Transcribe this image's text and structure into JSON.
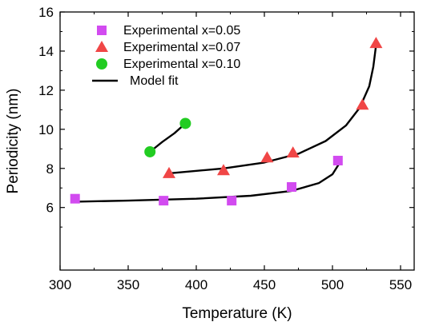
{
  "chart_data": {
    "type": "scatter",
    "xlabel": "Temperature (K)",
    "ylabel": "Periodicity (nm)",
    "xlim": [
      300,
      560
    ],
    "ylim": [
      2.8,
      16
    ],
    "xticks": [
      300,
      350,
      400,
      450,
      500,
      550
    ],
    "yticks": [
      6,
      8,
      10,
      12,
      14,
      16
    ],
    "legend_position": "top-left",
    "grid": false,
    "series": [
      {
        "name": "Experimental x=0.05",
        "marker": "square",
        "color": "#d24bf0",
        "points": [
          [
            311,
            6.45
          ],
          [
            376,
            6.35
          ],
          [
            426,
            6.35
          ],
          [
            470,
            7.05
          ],
          [
            504,
            8.4
          ]
        ]
      },
      {
        "name": "Experimental x=0.07",
        "marker": "triangle",
        "color": "#f04646",
        "points": [
          [
            380,
            7.75
          ],
          [
            420,
            7.9
          ],
          [
            452,
            8.55
          ],
          [
            471,
            8.8
          ],
          [
            522,
            11.25
          ],
          [
            532,
            14.4
          ]
        ]
      },
      {
        "name": "Experimental x=0.10",
        "marker": "circle",
        "color": "#22cc22",
        "points": [
          [
            366,
            8.85
          ],
          [
            392,
            10.3
          ]
        ]
      }
    ],
    "model_fit": {
      "name": "Model fit",
      "color": "#000000",
      "curves": [
        [
          [
            311,
            6.3
          ],
          [
            350,
            6.35
          ],
          [
            400,
            6.45
          ],
          [
            440,
            6.6
          ],
          [
            470,
            6.85
          ],
          [
            490,
            7.25
          ],
          [
            500,
            7.7
          ],
          [
            505,
            8.25
          ]
        ],
        [
          [
            380,
            7.75
          ],
          [
            420,
            8.0
          ],
          [
            450,
            8.3
          ],
          [
            475,
            8.75
          ],
          [
            495,
            9.4
          ],
          [
            510,
            10.2
          ],
          [
            520,
            11.1
          ],
          [
            527,
            12.2
          ],
          [
            530,
            13.2
          ],
          [
            532,
            14.3
          ]
        ],
        [
          [
            366,
            8.85
          ],
          [
            375,
            9.35
          ],
          [
            384,
            9.8
          ],
          [
            392,
            10.3
          ]
        ]
      ]
    }
  }
}
